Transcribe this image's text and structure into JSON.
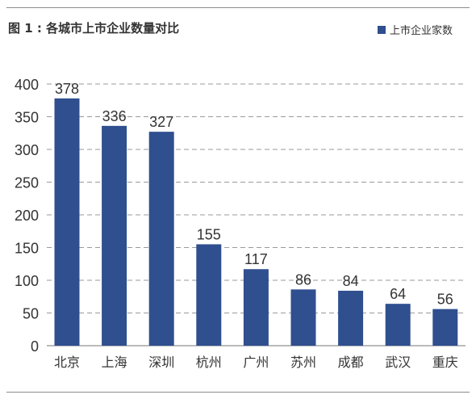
{
  "header": {
    "title": "图 1 : 各城市上市企业数量对比",
    "legend_label": "上市企业家数"
  },
  "colors": {
    "bar": "#2f4f8f",
    "grid": "#9a9a9a",
    "text": "#333333"
  },
  "chart_data": {
    "type": "bar",
    "title": "图 1 : 各城市上市企业数量对比",
    "xlabel": "",
    "ylabel": "",
    "categories": [
      "北京",
      "上海",
      "深圳",
      "杭州",
      "广州",
      "苏州",
      "成都",
      "武汉",
      "重庆"
    ],
    "series": [
      {
        "name": "上市企业家数",
        "values": [
          378,
          336,
          327,
          155,
          117,
          86,
          84,
          64,
          56
        ]
      }
    ],
    "ylim": [
      0,
      400
    ],
    "yticks": [
      0,
      50,
      100,
      150,
      200,
      250,
      300,
      350,
      400
    ],
    "grid": "horizontal dashed",
    "legend": "top-right",
    "data_labels": true
  }
}
